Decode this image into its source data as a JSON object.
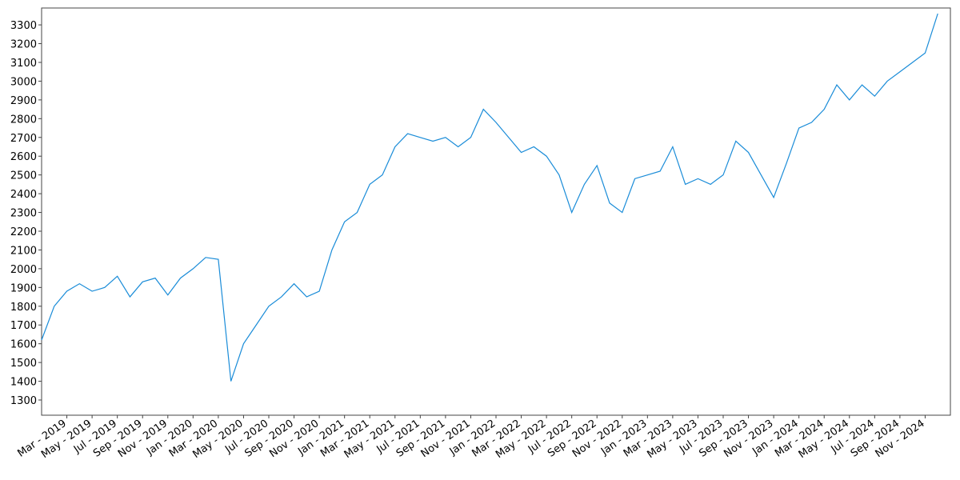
{
  "chart_data": {
    "type": "line",
    "x": [
      "2019-01",
      "2019-02",
      "2019-03",
      "2019-04",
      "2019-05",
      "2019-06",
      "2019-07",
      "2019-08",
      "2019-09",
      "2019-10",
      "2019-11",
      "2019-12",
      "2020-01",
      "2020-02",
      "2020-03",
      "2020-04",
      "2020-05",
      "2020-06",
      "2020-07",
      "2020-08",
      "2020-09",
      "2020-10",
      "2020-11",
      "2020-12",
      "2021-01",
      "2021-02",
      "2021-03",
      "2021-04",
      "2021-05",
      "2021-06",
      "2021-07",
      "2021-08",
      "2021-09",
      "2021-10",
      "2021-11",
      "2021-12",
      "2022-01",
      "2022-02",
      "2022-03",
      "2022-04",
      "2022-05",
      "2022-06",
      "2022-07",
      "2022-08",
      "2022-09",
      "2022-10",
      "2022-11",
      "2022-12",
      "2023-01",
      "2023-02",
      "2023-03",
      "2023-04",
      "2023-05",
      "2023-06",
      "2023-07",
      "2023-08",
      "2023-09",
      "2023-10",
      "2023-11",
      "2023-12",
      "2024-01",
      "2024-02",
      "2024-03",
      "2024-04",
      "2024-05",
      "2024-06",
      "2024-07",
      "2024-08",
      "2024-09",
      "2024-10",
      "2024-11",
      "2024-12"
    ],
    "series": [
      {
        "color": "#1a8cd8",
        "values": [
          1620,
          1800,
          1880,
          1920,
          1880,
          1900,
          1960,
          1850,
          1930,
          1950,
          1860,
          1950,
          2000,
          2060,
          2050,
          1400,
          1600,
          1700,
          1800,
          1850,
          1920,
          1850,
          1880,
          2100,
          2250,
          2300,
          2450,
          2500,
          2650,
          2720,
          2700,
          2680,
          2700,
          2650,
          2700,
          2850,
          2780,
          2700,
          2620,
          2650,
          2600,
          2500,
          2300,
          2450,
          2550,
          2350,
          2300,
          2480,
          2500,
          2520,
          2650,
          2450,
          2480,
          2450,
          2500,
          2680,
          2620,
          2500,
          2380,
          2560,
          2750,
          2780,
          2850,
          2980,
          2900,
          2980,
          2920,
          3000,
          3050,
          3100,
          3150,
          3360
        ]
      }
    ],
    "xlim": [
      "2019-01",
      "2024-12"
    ],
    "xticks": [
      {
        "value": "2019-03",
        "label": "Mar - 2019"
      },
      {
        "value": "2019-05",
        "label": "May - 2019"
      },
      {
        "value": "2019-07",
        "label": "Jul - 2019"
      },
      {
        "value": "2019-09",
        "label": "Sep - 2019"
      },
      {
        "value": "2019-11",
        "label": "Nov - 2019"
      },
      {
        "value": "2020-01",
        "label": "Jan - 2020"
      },
      {
        "value": "2020-03",
        "label": "Mar - 2020"
      },
      {
        "value": "2020-05",
        "label": "May - 2020"
      },
      {
        "value": "2020-07",
        "label": "Jul - 2020"
      },
      {
        "value": "2020-09",
        "label": "Sep - 2020"
      },
      {
        "value": "2020-11",
        "label": "Nov - 2020"
      },
      {
        "value": "2021-01",
        "label": "Jan - 2021"
      },
      {
        "value": "2021-03",
        "label": "Mar - 2021"
      },
      {
        "value": "2021-05",
        "label": "May - 2021"
      },
      {
        "value": "2021-07",
        "label": "Jul - 2021"
      },
      {
        "value": "2021-09",
        "label": "Sep - 2021"
      },
      {
        "value": "2021-11",
        "label": "Nov - 2021"
      },
      {
        "value": "2022-01",
        "label": "Jan - 2022"
      },
      {
        "value": "2022-03",
        "label": "Mar - 2022"
      },
      {
        "value": "2022-05",
        "label": "May - 2022"
      },
      {
        "value": "2022-07",
        "label": "Jul - 2022"
      },
      {
        "value": "2022-09",
        "label": "Sep - 2022"
      },
      {
        "value": "2022-11",
        "label": "Nov - 2022"
      },
      {
        "value": "2023-01",
        "label": "Jan - 2023"
      },
      {
        "value": "2023-03",
        "label": "Mar - 2023"
      },
      {
        "value": "2023-05",
        "label": "May - 2023"
      },
      {
        "value": "2023-07",
        "label": "Jul - 2023"
      },
      {
        "value": "2023-09",
        "label": "Sep - 2023"
      },
      {
        "value": "2023-11",
        "label": "Nov - 2023"
      },
      {
        "value": "2024-01",
        "label": "Jan - 2024"
      },
      {
        "value": "2024-03",
        "label": "Mar - 2024"
      },
      {
        "value": "2024-05",
        "label": "May - 2024"
      },
      {
        "value": "2024-07",
        "label": "Jul - 2024"
      },
      {
        "value": "2024-09",
        "label": "Sep - 2024"
      },
      {
        "value": "2024-11",
        "label": "Nov - 2024"
      }
    ],
    "ylim": [
      1219,
      3390
    ],
    "yticks": [
      1300,
      1400,
      1500,
      1600,
      1700,
      1800,
      1900,
      2000,
      2100,
      2200,
      2300,
      2400,
      2500,
      2600,
      2700,
      2800,
      2900,
      3000,
      3100,
      3200,
      3300
    ]
  }
}
